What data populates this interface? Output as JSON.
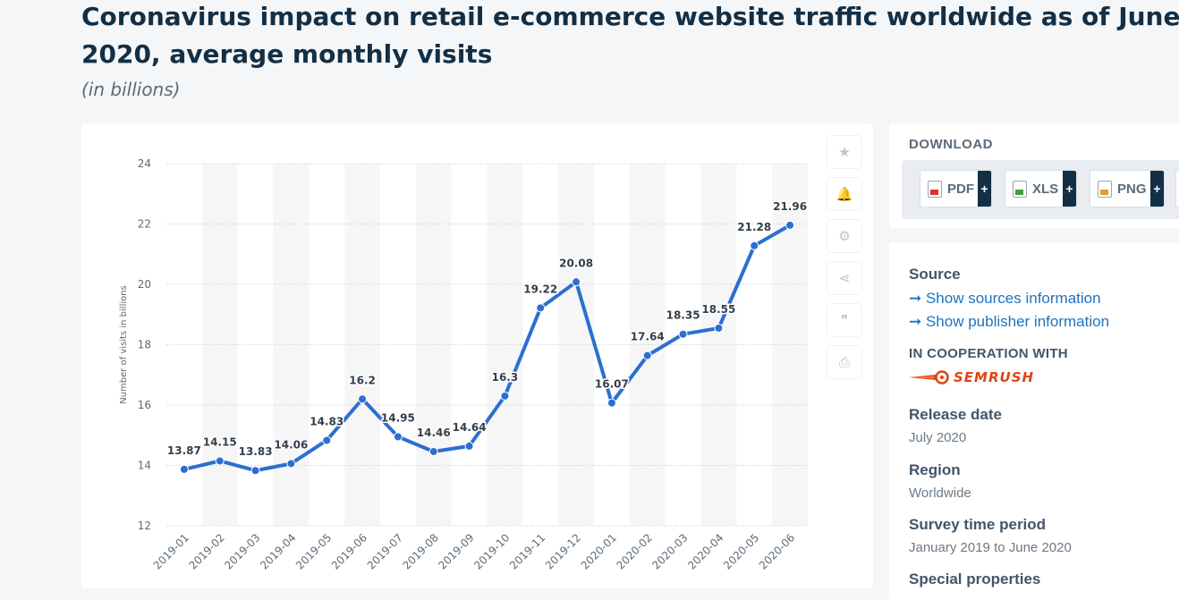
{
  "title": "Coronavirus impact on retail e-commerce website traffic worldwide as of June 2020, average monthly visits",
  "subtitle": "(in billions)",
  "toolbar": {
    "items": [
      {
        "name": "star-icon",
        "glyph": "★"
      },
      {
        "name": "bell-icon",
        "glyph": "🔔"
      },
      {
        "name": "gear-icon",
        "glyph": "⚙"
      },
      {
        "name": "share-icon",
        "glyph": "⋖"
      },
      {
        "name": "quote-icon",
        "glyph": "❞"
      },
      {
        "name": "print-icon",
        "glyph": "⎙"
      }
    ]
  },
  "download": {
    "heading": "DOWNLOAD",
    "buttons": [
      {
        "label": "PDF",
        "plus": "+",
        "color": "#d9342b"
      },
      {
        "label": "XLS",
        "plus": "+",
        "color": "#3aa13a"
      },
      {
        "label": "PNG",
        "plus": "+",
        "color": "#e0a020"
      }
    ]
  },
  "info": {
    "source_heading": "Source",
    "show_sources": "➞ Show sources information",
    "show_publisher": "➞ Show publisher information",
    "cooperation_heading": "IN COOPERATION WITH",
    "partner": "SEMRUSH",
    "release_heading": "Release date",
    "release_value": "July 2020",
    "region_heading": "Region",
    "region_value": "Worldwide",
    "survey_heading": "Survey time period",
    "survey_value": "January 2019 to June 2020",
    "special_heading": "Special properties"
  },
  "chart_data": {
    "type": "line",
    "x": [
      "2019-01",
      "2019-02",
      "2019-03",
      "2019-04",
      "2019-05",
      "2019-06",
      "2019-07",
      "2019-08",
      "2019-09",
      "2019-10",
      "2019-11",
      "2019-12",
      "2020-01",
      "2020-02",
      "2020-03",
      "2020-04",
      "2020-05",
      "2020-06"
    ],
    "series": [
      {
        "values": [
          13.87,
          14.15,
          13.83,
          14.06,
          14.83,
          16.2,
          14.95,
          14.46,
          14.64,
          16.3,
          19.22,
          20.08,
          16.07,
          17.64,
          18.35,
          18.55,
          21.28,
          21.96
        ],
        "color": "#2b6fd0"
      }
    ],
    "ylabel": "Number of visits in billions",
    "ylim": [
      12,
      24
    ],
    "yticks": [
      "12",
      "14",
      "16",
      "18",
      "20",
      "22",
      "24"
    ],
    "grid": true
  }
}
